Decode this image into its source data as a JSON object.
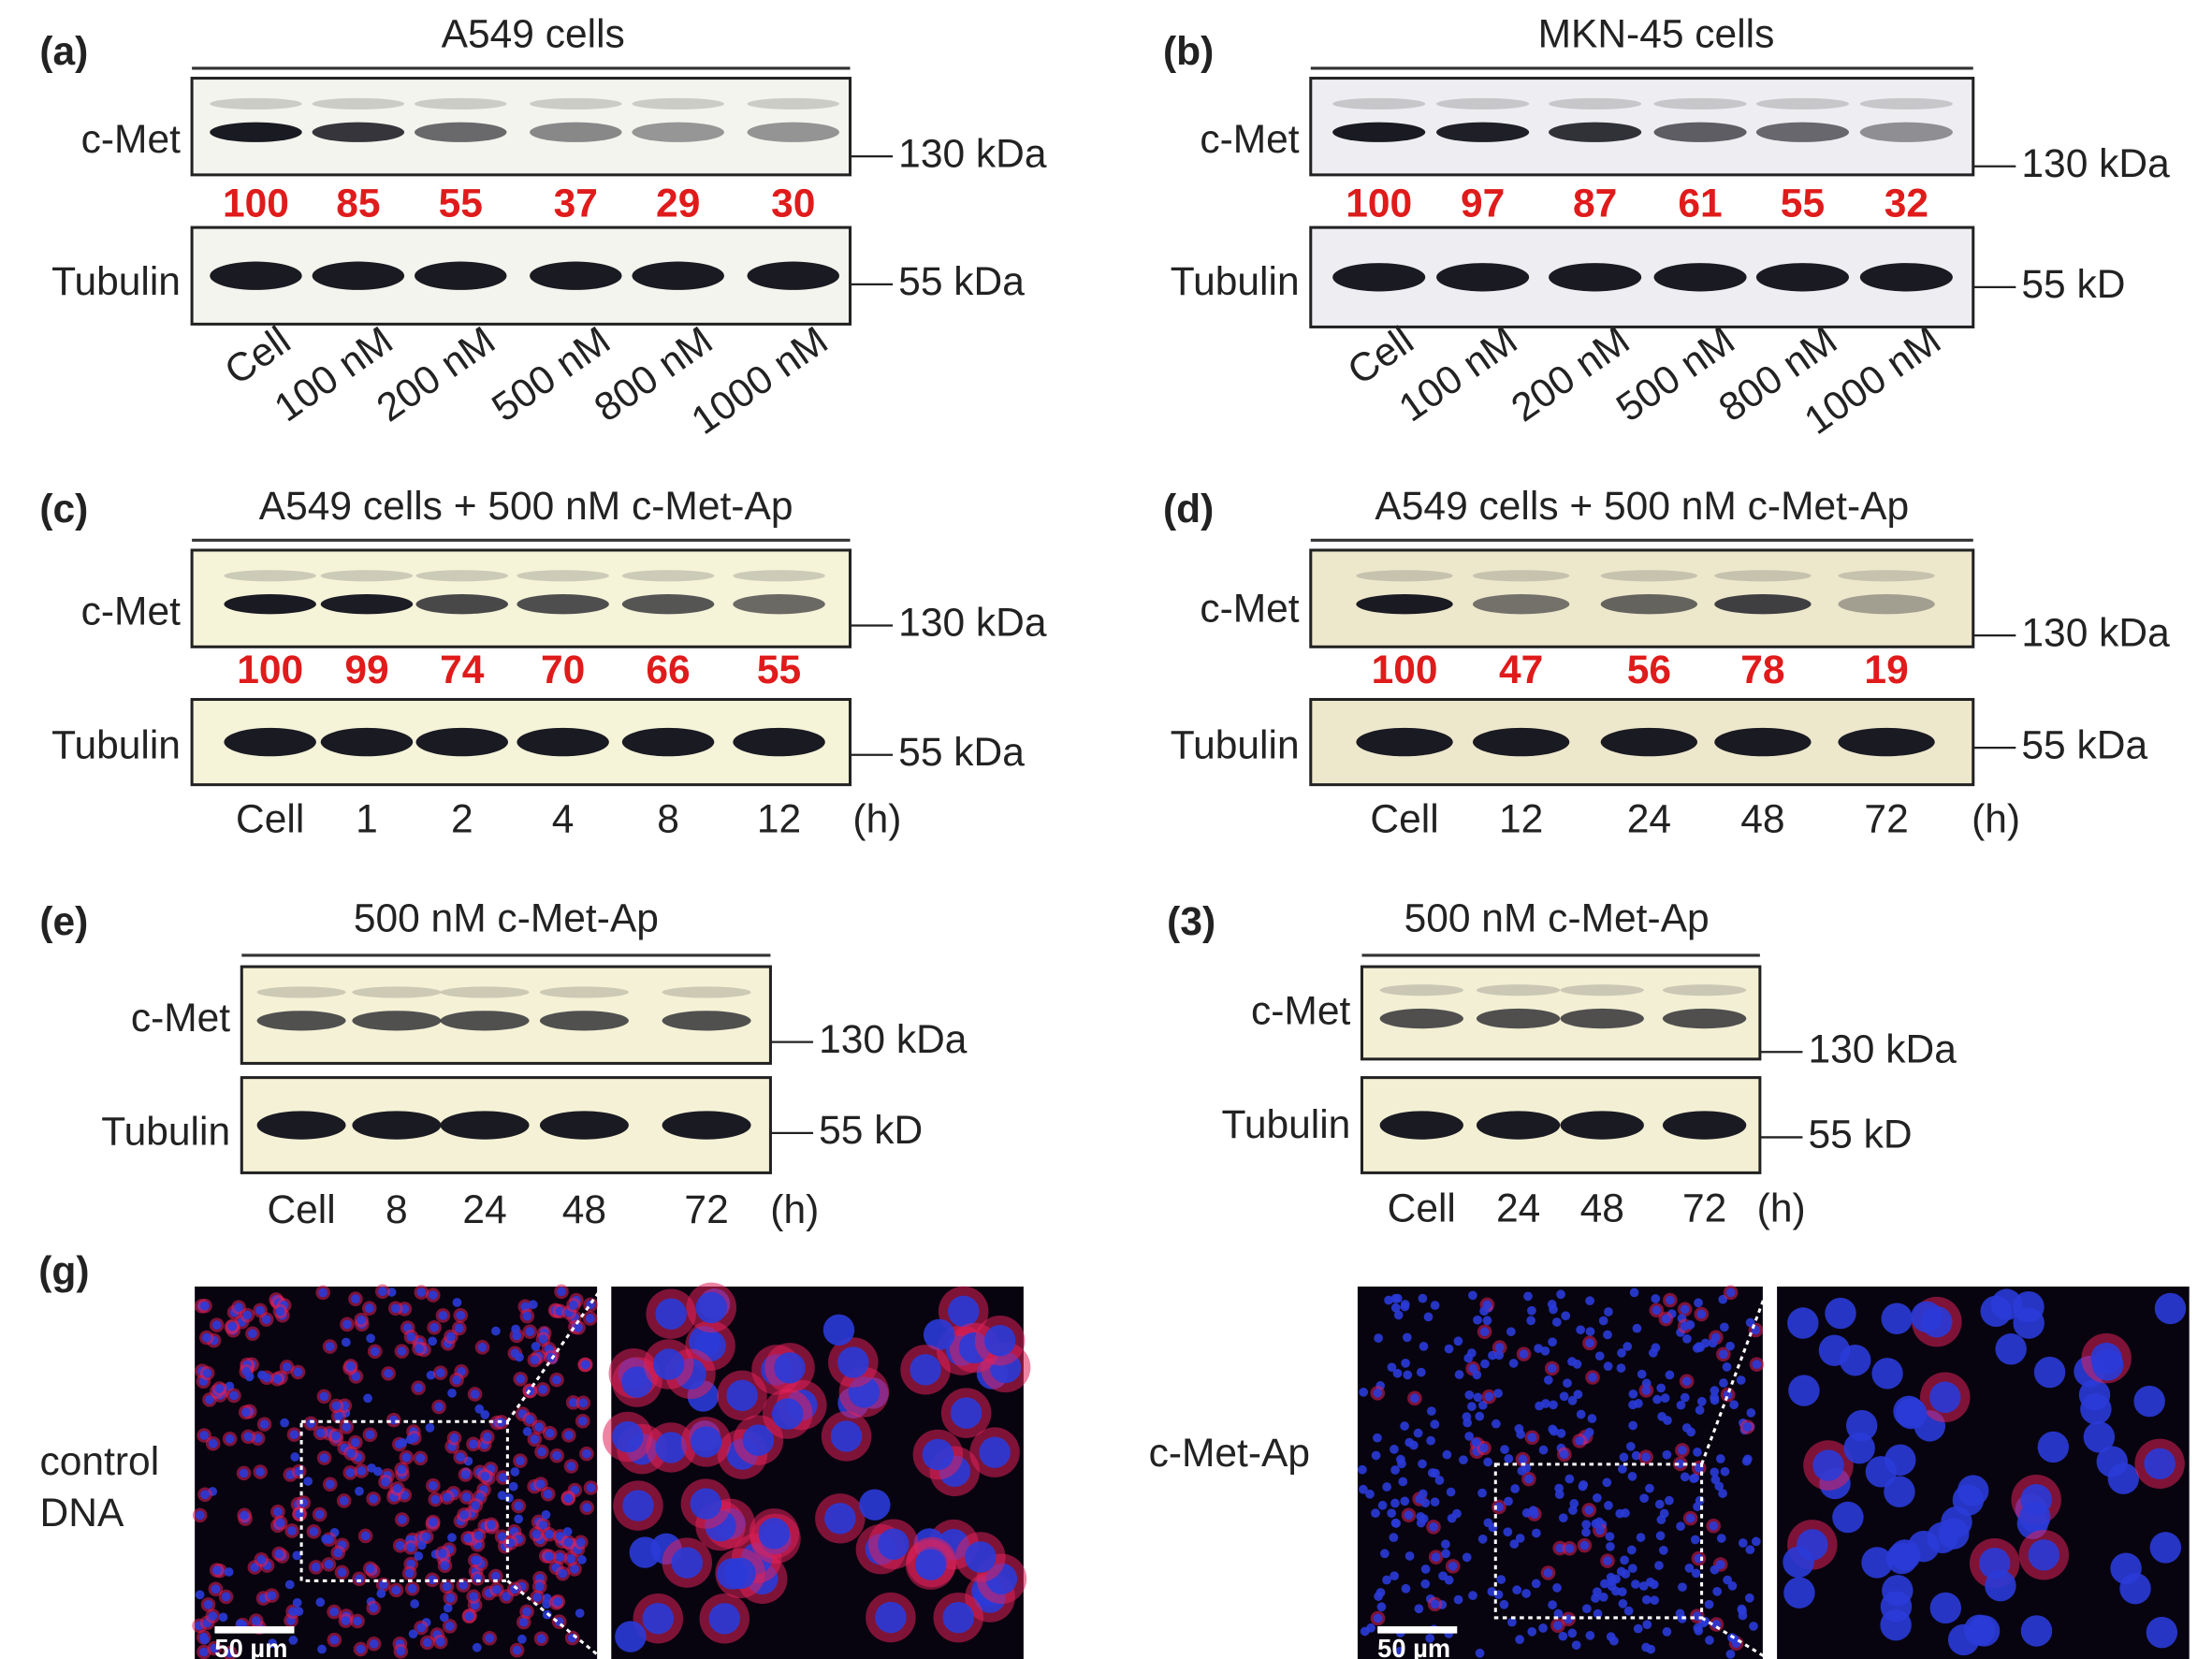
{
  "panels": [
    {
      "label": "(a)",
      "title": "A549 cells",
      "rows": [
        {
          "name": "c-Met",
          "size": "130 kDa"
        },
        {
          "name": "Tubulin",
          "size": "55 kDa"
        }
      ],
      "quantities": [
        100,
        85,
        55,
        37,
        29,
        30
      ],
      "lanes": [
        "Cell",
        "100 nM",
        "200 nM",
        "500 nM",
        "800 nM",
        "1000 nM"
      ]
    },
    {
      "label": "(b)",
      "title": "MKN-45 cells",
      "rows": [
        {
          "name": "c-Met",
          "size": "130 kDa"
        },
        {
          "name": "Tubulin",
          "size": "55 kD"
        }
      ],
      "quantities": [
        100,
        97,
        87,
        61,
        55,
        32
      ],
      "lanes": [
        "Cell",
        "100 nM",
        "200 nM",
        "500 nM",
        "800 nM",
        "1000 nM"
      ]
    },
    {
      "label": "(c)",
      "title": "A549 cells + 500 nM c-Met-Ap",
      "rows": [
        {
          "name": "c-Met",
          "size": "130 kDa"
        },
        {
          "name": "Tubulin",
          "size": "55 kDa"
        }
      ],
      "quantities": [
        100,
        99,
        74,
        70,
        66,
        55
      ],
      "lanes": [
        "Cell",
        "1",
        "2",
        "4",
        "8",
        "12"
      ],
      "unit": "(h)"
    },
    {
      "label": "(d)",
      "title": "A549 cells + 500 nM c-Met-Ap",
      "rows": [
        {
          "name": "c-Met",
          "size": "130 kDa"
        },
        {
          "name": "Tubulin",
          "size": "55 kDa"
        }
      ],
      "quantities": [
        100,
        47,
        56,
        78,
        19
      ],
      "lanes": [
        "Cell",
        "12",
        "24",
        "48",
        "72"
      ],
      "unit": "(h)"
    },
    {
      "label": "(e)",
      "title": "500 nM c-Met-Ap",
      "rows": [
        {
          "name": "c-Met",
          "size": "130 kDa"
        },
        {
          "name": "Tubulin",
          "size": "55 kD"
        }
      ],
      "lanes": [
        "Cell",
        "8",
        "24",
        "48",
        "72"
      ],
      "unit": "(h)"
    },
    {
      "label": "(3)",
      "title": "500 nM c-Met-Ap",
      "rows": [
        {
          "name": "c-Met",
          "size": "130 kDa"
        },
        {
          "name": "Tubulin",
          "size": "55 kD"
        }
      ],
      "lanes": [
        "Cell",
        "24",
        "48",
        "72"
      ],
      "unit": "(h)"
    }
  ],
  "imaging": {
    "label": "(g)",
    "conditions": [
      {
        "lines": [
          "control",
          "DNA"
        ],
        "scale_bar": "50 µm"
      },
      {
        "lines": [
          "c-Met-Ap"
        ],
        "scale_bar": "50 µm"
      }
    ]
  }
}
